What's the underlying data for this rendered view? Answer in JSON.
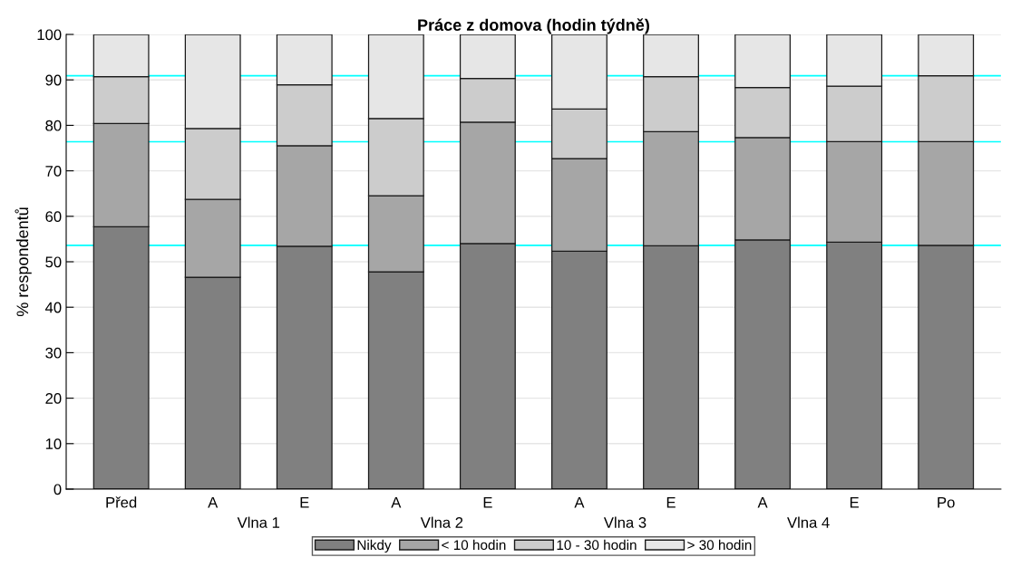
{
  "chart_data": {
    "type": "bar",
    "stacked": true,
    "title": "Práce z domova (hodin týdně)",
    "ylabel": "% respondentů",
    "categories": [
      "Před",
      "A",
      "E",
      "A",
      "E",
      "A",
      "E",
      "A",
      "E",
      "Po"
    ],
    "ylim": [
      0,
      100
    ],
    "yticks": [
      0,
      10,
      20,
      30,
      40,
      50,
      60,
      70,
      80,
      90,
      100
    ],
    "series": [
      {
        "name": "Nikdy",
        "color": "#808080",
        "values": [
          57.7,
          46.6,
          53.4,
          47.8,
          54.0,
          52.3,
          53.5,
          54.8,
          54.3,
          53.6
        ]
      },
      {
        "name": "< 10 hodin",
        "color": "#a6a6a6",
        "values": [
          22.7,
          17.1,
          22.1,
          16.7,
          26.7,
          20.4,
          25.1,
          22.5,
          22.1,
          22.8
        ]
      },
      {
        "name": "10 - 30 hodin",
        "color": "#cccccc",
        "values": [
          10.3,
          15.6,
          13.4,
          17.0,
          9.6,
          10.9,
          12.1,
          11.0,
          12.2,
          14.5
        ]
      },
      {
        "name": "> 30 hodin",
        "color": "#e6e6e6",
        "values": [
          9.3,
          20.7,
          11.1,
          18.5,
          9.7,
          16.4,
          9.3,
          11.7,
          11.4,
          9.1
        ]
      }
    ],
    "ref_lines": [
      {
        "axis": "y",
        "value": 90.9,
        "color": "#00ffff"
      },
      {
        "axis": "y",
        "value": 76.4,
        "color": "#00ffff"
      },
      {
        "axis": "y",
        "value": 53.6,
        "color": "#00ffff"
      }
    ],
    "annotations": [
      "Vlna 1",
      "Vlna 2",
      "Vlna 3",
      "Vlna 4"
    ],
    "grid": "y",
    "legend": "bottom"
  }
}
